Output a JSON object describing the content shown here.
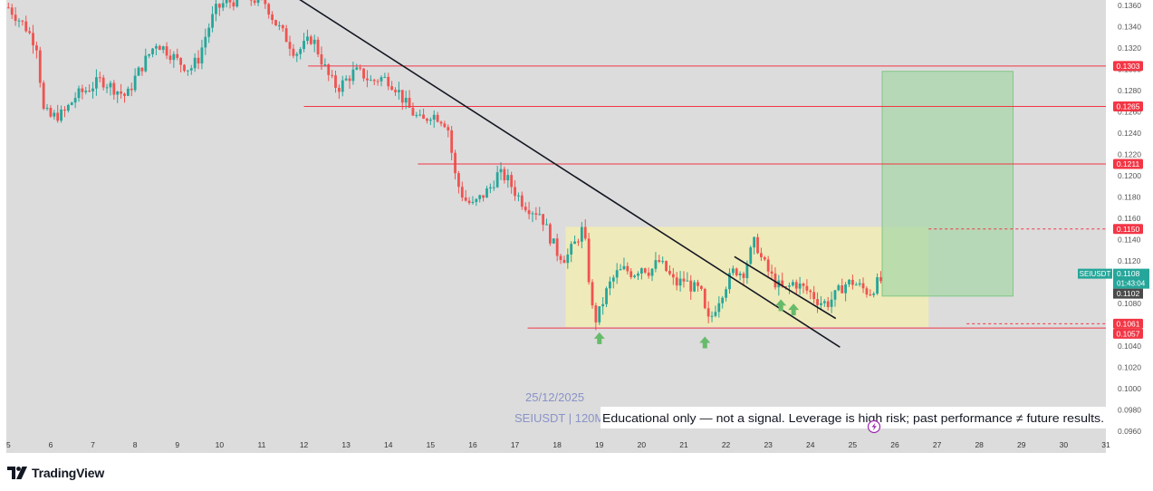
{
  "brand": {
    "name": "TradingView",
    "logo_icon": "tradingview-logo-icon"
  },
  "watermark": {
    "date": "25/12/2025",
    "symbol_interval": "SEIUSDT | 120M",
    "disclaimer": "Educational only — not a signal. Leverage is high risk; past performance ≠ future results."
  },
  "colors": {
    "background": "#dcdcdc",
    "bull": "#26a69a",
    "bear": "#ef5350",
    "level_line": "#f23645",
    "trendline": "#131722",
    "range_box": "#fff59d",
    "target_box": "#a5d6a7",
    "arrow": "#66bb6a"
  },
  "chart_data": {
    "type": "candlestick",
    "symbol": "SEIUSDT",
    "interval": "120M",
    "x_axis": {
      "ticks": [
        "5",
        "6",
        "7",
        "8",
        "9",
        "10",
        "11",
        "12",
        "13",
        "14",
        "15",
        "16",
        "17",
        "18",
        "19",
        "20",
        "21",
        "22",
        "23",
        "24",
        "25",
        "26",
        "27",
        "28",
        "29",
        "30",
        "31"
      ],
      "range": [
        4.95,
        31.0
      ]
    },
    "y_axis": {
      "ticks": [
        "0.1360",
        "0.1340",
        "0.1320",
        "0.1300",
        "0.1280",
        "0.1260",
        "0.1240",
        "0.1220",
        "0.1200",
        "0.1180",
        "0.1160",
        "0.1140",
        "0.1120",
        "0.1100",
        "0.1080",
        "0.1060",
        "0.1040",
        "0.1020",
        "0.1000",
        "0.0980",
        "0.0960"
      ],
      "range": [
        0.0955,
        0.1365
      ]
    },
    "price_path": [
      [
        5.0,
        0.1358
      ],
      [
        5.4,
        0.134
      ],
      [
        5.7,
        0.132
      ],
      [
        5.8,
        0.1262
      ],
      [
        6.0,
        0.1255
      ],
      [
        6.3,
        0.1258
      ],
      [
        6.6,
        0.1275
      ],
      [
        6.9,
        0.1282
      ],
      [
        7.2,
        0.129
      ],
      [
        7.5,
        0.1282
      ],
      [
        7.8,
        0.1274
      ],
      [
        8.0,
        0.1292
      ],
      [
        8.3,
        0.1312
      ],
      [
        8.5,
        0.1325
      ],
      [
        8.8,
        0.1316
      ],
      [
        9.0,
        0.1308
      ],
      [
        9.3,
        0.13
      ],
      [
        9.5,
        0.131
      ],
      [
        9.7,
        0.1335
      ],
      [
        9.9,
        0.1355
      ],
      [
        10.1,
        0.1362
      ],
      [
        10.4,
        0.1365
      ],
      [
        10.8,
        0.1366
      ],
      [
        11.1,
        0.1362
      ],
      [
        11.3,
        0.1345
      ],
      [
        11.6,
        0.1328
      ],
      [
        11.8,
        0.1315
      ],
      [
        12.0,
        0.1322
      ],
      [
        12.2,
        0.133
      ],
      [
        12.4,
        0.131
      ],
      [
        12.6,
        0.1292
      ],
      [
        12.8,
        0.1282
      ],
      [
        13.0,
        0.129
      ],
      [
        13.2,
        0.1298
      ],
      [
        13.4,
        0.1295
      ],
      [
        13.6,
        0.1288
      ],
      [
        13.8,
        0.1292
      ],
      [
        14.0,
        0.129
      ],
      [
        14.2,
        0.1282
      ],
      [
        14.4,
        0.1268
      ],
      [
        14.6,
        0.1258
      ],
      [
        14.8,
        0.125
      ],
      [
        15.0,
        0.1258
      ],
      [
        15.2,
        0.1255
      ],
      [
        15.4,
        0.1248
      ],
      [
        15.6,
        0.1196
      ],
      [
        15.8,
        0.1178
      ],
      [
        16.0,
        0.1172
      ],
      [
        16.2,
        0.118
      ],
      [
        16.4,
        0.1188
      ],
      [
        16.6,
        0.1202
      ],
      [
        16.8,
        0.1198
      ],
      [
        17.0,
        0.1185
      ],
      [
        17.2,
        0.1174
      ],
      [
        17.4,
        0.1168
      ],
      [
        17.6,
        0.1165
      ],
      [
        17.8,
        0.1145
      ],
      [
        18.0,
        0.1128
      ],
      [
        18.2,
        0.1122
      ],
      [
        18.4,
        0.1135
      ],
      [
        18.6,
        0.115
      ],
      [
        18.7,
        0.1128
      ],
      [
        18.8,
        0.108
      ],
      [
        18.9,
        0.1064
      ],
      [
        19.0,
        0.1072
      ],
      [
        19.2,
        0.1095
      ],
      [
        19.4,
        0.1108
      ],
      [
        19.6,
        0.1112
      ],
      [
        19.8,
        0.1108
      ],
      [
        20.0,
        0.1115
      ],
      [
        20.2,
        0.111
      ],
      [
        20.4,
        0.112
      ],
      [
        20.6,
        0.111
      ],
      [
        20.8,
        0.1098
      ],
      [
        21.0,
        0.1102
      ],
      [
        21.2,
        0.1095
      ],
      [
        21.4,
        0.1092
      ],
      [
        21.5,
        0.1072
      ],
      [
        21.6,
        0.1062
      ],
      [
        21.8,
        0.1082
      ],
      [
        22.0,
        0.1098
      ],
      [
        22.2,
        0.1112
      ],
      [
        22.4,
        0.1108
      ],
      [
        22.6,
        0.113
      ],
      [
        22.7,
        0.114
      ],
      [
        22.8,
        0.1125
      ],
      [
        23.0,
        0.111
      ],
      [
        23.2,
        0.1098
      ],
      [
        23.4,
        0.1092
      ],
      [
        23.6,
        0.11
      ],
      [
        23.8,
        0.1095
      ],
      [
        24.0,
        0.109
      ],
      [
        24.2,
        0.1082
      ],
      [
        24.4,
        0.108
      ],
      [
        24.6,
        0.1088
      ],
      [
        24.8,
        0.1098
      ],
      [
        25.0,
        0.11
      ],
      [
        25.2,
        0.1095
      ],
      [
        25.4,
        0.109
      ],
      [
        25.6,
        0.11
      ],
      [
        25.7,
        0.1102
      ]
    ],
    "horizontal_levels": [
      {
        "price": 0.1303,
        "label": "0.1303",
        "start_x": 12.1
      },
      {
        "price": 0.1265,
        "label": "0.1265",
        "start_x": 12.0
      },
      {
        "price": 0.1211,
        "label": "0.1211",
        "start_x": 14.7
      },
      {
        "price": 0.115,
        "label": "0.1150",
        "start_x": 26.8,
        "dashed": true
      },
      {
        "price": 0.1061,
        "label": "0.1061",
        "start_x": 27.7,
        "dashed": true
      },
      {
        "price": 0.1057,
        "label": "0.1057",
        "start_x": 17.3
      }
    ],
    "trendlines": [
      {
        "from": [
          11.8,
          0.1368
        ],
        "to": [
          24.7,
          0.1039
        ]
      },
      {
        "from": [
          22.2,
          0.1124
        ],
        "to": [
          24.6,
          0.1066
        ]
      }
    ],
    "range_box": {
      "x1": 18.2,
      "x2": 26.8,
      "y_top": 0.1152,
      "y_bottom": 0.1058
    },
    "target_box": {
      "x1": 25.7,
      "x2": 28.8,
      "y_top": 0.1298,
      "y_bottom": 0.1087
    },
    "arrows": [
      {
        "x": 19.0,
        "price": 0.1047
      },
      {
        "x": 21.5,
        "price": 0.1043
      },
      {
        "x": 23.3,
        "price": 0.1078
      },
      {
        "x": 23.6,
        "price": 0.1074
      }
    ],
    "current_price_tag": {
      "symbol": "SEIUSDT",
      "price": "0.1108",
      "countdown": "01:43:04",
      "price_value": 0.1108,
      "prev_close": "0.1102",
      "prev_close_value": 0.1102
    }
  }
}
